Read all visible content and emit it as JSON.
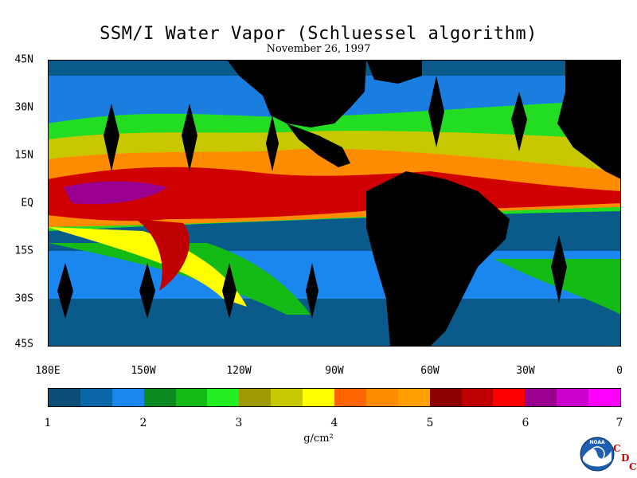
{
  "title": "SSM/I Water Vapor (Schluessel algorithm)",
  "date": "November 26, 1997",
  "lat_labels": [
    "45N",
    "30N",
    "15N",
    "EQ",
    "15S",
    "30S",
    "45S"
  ],
  "lon_labels": [
    "180E",
    "150W",
    "120W",
    "90W",
    "60W",
    "30W",
    "0"
  ],
  "colorbar": {
    "colors": [
      "#0b4f78",
      "#0a67a8",
      "#1a86f0",
      "#0a8a20",
      "#14bb14",
      "#22ee22",
      "#9c9a00",
      "#c8c800",
      "#ffff00",
      "#ff6400",
      "#ff8c00",
      "#ffa000",
      "#8c0000",
      "#c00000",
      "#ff0000",
      "#9a0090",
      "#cc00cc",
      "#ff00ff"
    ],
    "tick_labels": [
      "1",
      "2",
      "3",
      "4",
      "5",
      "6",
      "7"
    ],
    "units": "g/cm²"
  },
  "logo": {
    "name": "NOAA",
    "side_text": [
      "C",
      "D",
      "C"
    ]
  }
}
